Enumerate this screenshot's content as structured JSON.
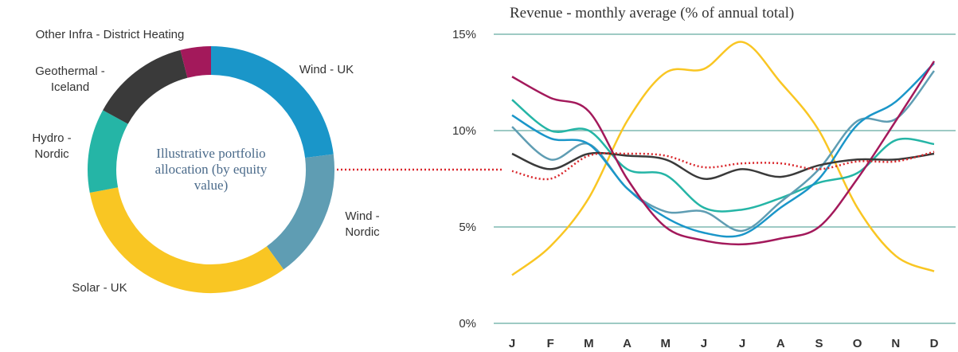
{
  "chart_data": [
    {
      "type": "donut",
      "center_text": "Illustrative portfolio allocation (by equity value)",
      "categories": [
        "Wind - UK",
        "Wind - Nordic",
        "Solar - UK",
        "Hydro - Nordic",
        "Geothermal - Iceland",
        "Other Infra - District Heating"
      ],
      "values": [
        23,
        17,
        32,
        11,
        13,
        4
      ],
      "colors": [
        "#1a96c9",
        "#5f9db3",
        "#f9c623",
        "#25b5a6",
        "#3a3a3a",
        "#a3195b"
      ]
    },
    {
      "type": "line",
      "title": "Revenue - monthly average (% of annual total)",
      "categories": [
        "J",
        "F",
        "M",
        "A",
        "M",
        "J",
        "J",
        "A",
        "S",
        "O",
        "N",
        "D"
      ],
      "ylim": [
        0,
        15
      ],
      "yticks": [
        {
          "value": 0,
          "label": "0%"
        },
        {
          "value": 5,
          "label": "5%"
        },
        {
          "value": 10,
          "label": "10%"
        },
        {
          "value": 15,
          "label": "15%"
        }
      ],
      "grid": true,
      "series": [
        {
          "color": "#f9c623",
          "values": [
            2.5,
            4.0,
            6.5,
            10.5,
            13.0,
            13.2,
            14.6,
            12.5,
            10.0,
            6.0,
            3.5,
            2.7
          ]
        },
        {
          "color": "#25b5a6",
          "values": [
            11.6,
            10.0,
            10.0,
            8.0,
            7.7,
            6.0,
            5.9,
            6.5,
            7.3,
            7.8,
            9.5,
            9.3
          ]
        },
        {
          "color": "#5f9db3",
          "values": [
            10.2,
            8.5,
            9.3,
            7.0,
            5.8,
            5.8,
            4.8,
            6.3,
            8.0,
            10.5,
            10.6,
            13.1
          ]
        },
        {
          "color": "#1a96c9",
          "values": [
            10.8,
            9.6,
            9.3,
            7.0,
            5.5,
            4.7,
            4.6,
            6.0,
            7.5,
            10.3,
            11.5,
            13.5
          ]
        },
        {
          "color": "#a3195b",
          "values": [
            12.8,
            11.7,
            11.0,
            7.5,
            5.0,
            4.3,
            4.1,
            4.4,
            5.0,
            7.5,
            10.5,
            13.6
          ]
        },
        {
          "color": "#3a3a3a",
          "values": [
            8.8,
            8.0,
            8.8,
            8.7,
            8.5,
            7.5,
            8.0,
            7.6,
            8.2,
            8.5,
            8.5,
            8.8
          ]
        },
        {
          "color": "#d9262b",
          "dash": true,
          "values": [
            7.9,
            7.5,
            8.7,
            8.8,
            8.7,
            8.1,
            8.3,
            8.3,
            8.0,
            8.4,
            8.4,
            8.9
          ]
        }
      ]
    }
  ]
}
